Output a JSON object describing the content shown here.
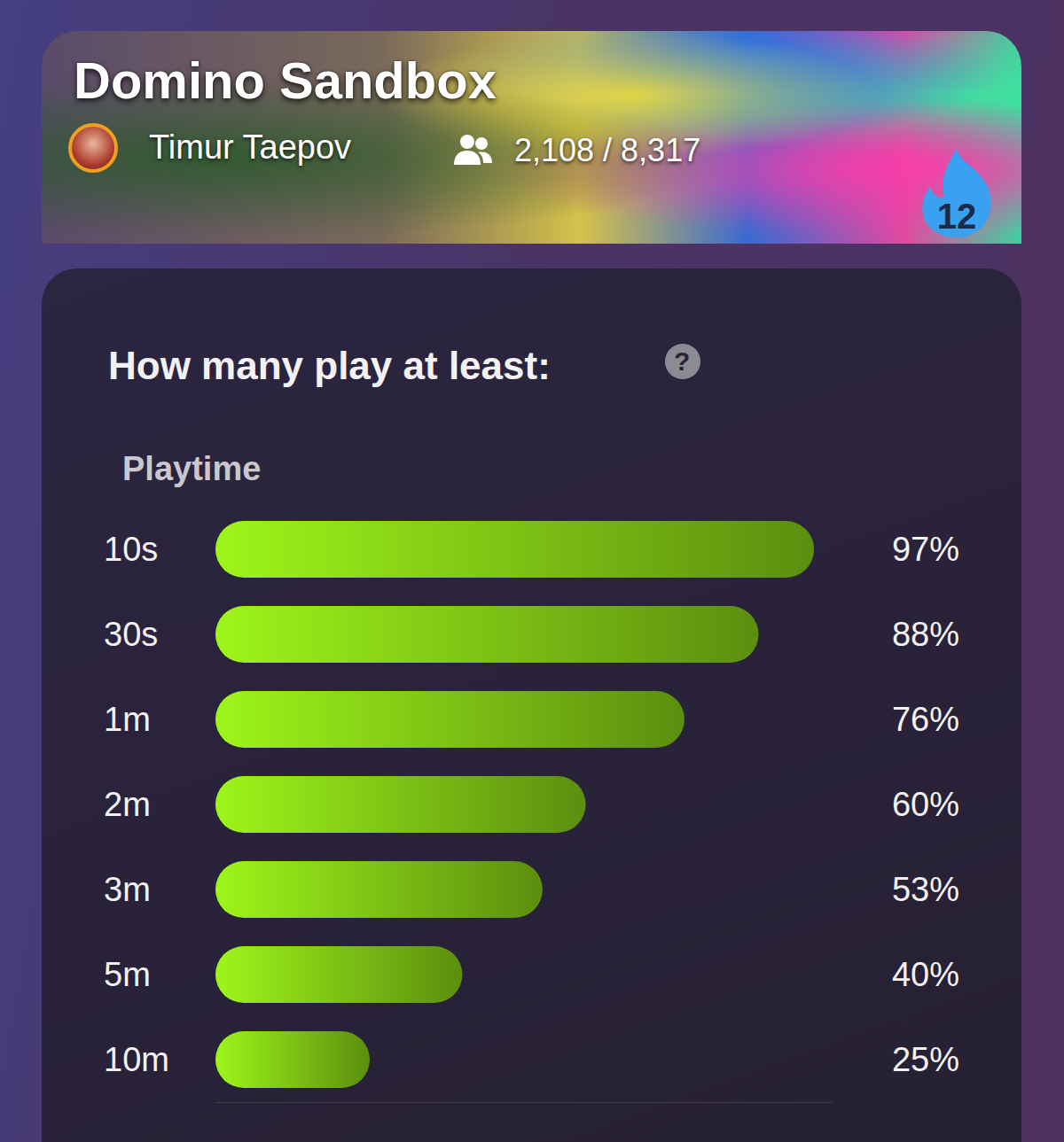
{
  "header": {
    "title": "Domino Sandbox",
    "author": "Timur Taepov",
    "players": "2,108 / 8,317",
    "badge": "12"
  },
  "help_icon": "?",
  "chart_data": {
    "type": "bar",
    "orientation": "horizontal",
    "title": "How many play at least:",
    "ylabel": "Playtime",
    "categories": [
      "10s",
      "30s",
      "1m",
      "2m",
      "3m",
      "5m",
      "10m"
    ],
    "values": [
      97,
      88,
      76,
      60,
      53,
      40,
      25
    ],
    "value_labels": [
      "97%",
      "88%",
      "76%",
      "60%",
      "53%",
      "40%",
      "25%"
    ],
    "color": "#9ef51a",
    "xlim": [
      0,
      100
    ],
    "tick_labels": false,
    "grid": false,
    "data_labels": true
  }
}
